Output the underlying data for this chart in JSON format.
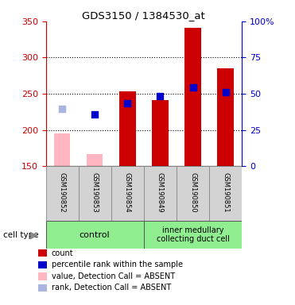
{
  "title": "GDS3150 / 1384530_at",
  "samples": [
    "GSM190852",
    "GSM190853",
    "GSM190854",
    "GSM190849",
    "GSM190850",
    "GSM190851"
  ],
  "ylim_left": [
    150,
    350
  ],
  "ylim_right": [
    0,
    100
  ],
  "yticks_left": [
    150,
    200,
    250,
    300,
    350
  ],
  "yticks_right": [
    0,
    25,
    50,
    75,
    100
  ],
  "yticklabels_right": [
    "0",
    "25",
    "50",
    "75",
    "100%"
  ],
  "bar_bottom": 150,
  "bar_values_red": [
    null,
    null,
    253,
    241,
    341,
    285
  ],
  "bar_values_pink": [
    195,
    167,
    null,
    null,
    null,
    null
  ],
  "dot_blue_dark": [
    null,
    222,
    237,
    247,
    259,
    252
  ],
  "dot_blue_light": [
    229,
    null,
    null,
    null,
    null,
    null
  ],
  "bar_color_red": "#cc0000",
  "bar_color_pink": "#ffb6c1",
  "dot_color_dark_blue": "#0000cc",
  "dot_color_light_blue": "#aab4e0",
  "left_axis_color": "#cc0000",
  "right_axis_color": "#0000cc",
  "legend_items": [
    {
      "label": "count",
      "color": "#cc0000"
    },
    {
      "label": "percentile rank within the sample",
      "color": "#0000cc"
    },
    {
      "label": "value, Detection Call = ABSENT",
      "color": "#ffb6c1"
    },
    {
      "label": "rank, Detection Call = ABSENT",
      "color": "#aab4e0"
    }
  ],
  "figsize": [
    3.71,
    3.84
  ],
  "dpi": 100
}
